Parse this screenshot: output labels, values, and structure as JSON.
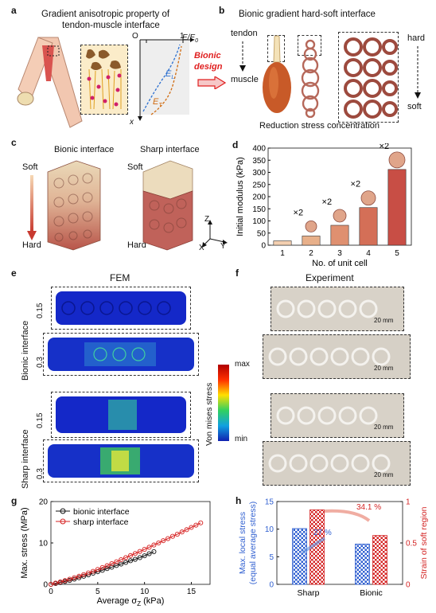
{
  "panels": {
    "a": {
      "letter": "a",
      "title_line1": "Gradient anisotropic property of",
      "title_line2": "tendon-muscle interface",
      "axis_origin": "O",
      "axis_one": "1",
      "axis_e": "E/E",
      "axis_e_sub": "0",
      "axis_x": "x",
      "el": "E",
      "el_sub": "L",
      "et": "E",
      "et_sub": "T"
    },
    "arrow": {
      "line1": "Bionic",
      "line2": "design"
    },
    "b": {
      "letter": "b",
      "title": "Bionic gradient hard-soft interface",
      "tendon": "tendon",
      "muscle": "muscle",
      "hard": "hard",
      "soft": "soft",
      "caption": "Reduction stress concentration"
    },
    "c": {
      "letter": "c",
      "bionic": "Bionic interface",
      "sharp": "Sharp interface",
      "soft1": "Soft",
      "hard1": "Hard",
      "soft2": "Soft",
      "hard2": "Hard",
      "axis_z": "Z",
      "axis_x": "X",
      "axis_y": "Y"
    },
    "d": {
      "letter": "d",
      "ylabel": "Initial modulus (kPa)",
      "xlabel": "No. of unit cell",
      "multiplier": "×2"
    },
    "e": {
      "letter": "e",
      "title": "FEM",
      "group1": "Bionic interface",
      "group2": "Sharp interface",
      "strain1": "0.15",
      "strain2": "0.3",
      "strain3": "0.15",
      "strain4": "0.3",
      "cbar_title": "Von mises stress",
      "cbar_max": "max",
      "cbar_min": "min"
    },
    "f": {
      "letter": "f",
      "title": "Experiment",
      "scale": "20 mm"
    },
    "g": {
      "letter": "g",
      "ylabel": "Max. stress (MPa)",
      "xlabel_pre": "Average σ",
      "xlabel_sub": "Z",
      "xlabel_post": " (kPa)",
      "legend_bionic": "bionic interface",
      "legend_sharp": "sharp interface"
    },
    "h": {
      "letter": "h",
      "ylabel_left1": "Max. local stress",
      "ylabel_left2": "(equal average stress)",
      "ylabel_right": "Strain of soft region",
      "pct_blue": "27 %",
      "pct_red": "34.1 %",
      "cat1": "Sharp",
      "cat2": "Bionic"
    }
  },
  "chart_data": [
    {
      "type": "bar",
      "id": "d",
      "categories": [
        "1",
        "2",
        "3",
        "4",
        "5"
      ],
      "values": [
        18,
        38,
        82,
        155,
        312
      ],
      "ylim": [
        0,
        400
      ],
      "yticks": [
        0,
        50,
        100,
        150,
        200,
        250,
        300,
        350,
        400
      ],
      "xlabel": "No. of unit cell",
      "ylabel": "Initial modulus (kPa)",
      "colors": [
        "#f3cfb0",
        "#e8b08a",
        "#df9070",
        "#d46f57",
        "#c84e45"
      ],
      "grid": false
    },
    {
      "type": "line",
      "id": "g",
      "xlim": [
        0,
        17
      ],
      "ylim": [
        0,
        20
      ],
      "xticks": [
        0,
        5,
        10,
        15
      ],
      "yticks": [
        0,
        10,
        20
      ],
      "xlabel": "Average σZ (kPa)",
      "ylabel": "Max. stress (MPa)",
      "legend": "top-left",
      "series": [
        {
          "name": "bionic interface",
          "color": "#111111",
          "x": [
            0,
            0.5,
            1,
            1.5,
            2,
            2.5,
            3,
            3.5,
            4,
            4.5,
            5,
            5.5,
            6,
            6.5,
            7,
            7.5,
            8,
            8.5,
            9,
            9.5,
            10,
            10.5,
            11
          ],
          "y": [
            0,
            0.2,
            0.45,
            0.7,
            0.95,
            1.25,
            1.6,
            1.95,
            2.3,
            2.7,
            3.05,
            3.4,
            3.8,
            4.15,
            4.55,
            4.9,
            5.3,
            5.7,
            6.05,
            6.45,
            6.9,
            7.4,
            7.9
          ]
        },
        {
          "name": "sharp interface",
          "color": "#d62020",
          "x": [
            0,
            0.5,
            1,
            1.5,
            2,
            2.5,
            3,
            3.5,
            4,
            4.5,
            5,
            5.5,
            6,
            6.5,
            7,
            7.5,
            8,
            8.5,
            9,
            9.5,
            10,
            10.5,
            11,
            11.5,
            12,
            12.5,
            13,
            13.5,
            14,
            14.5,
            15,
            15.5,
            16
          ],
          "y": [
            0,
            0.3,
            0.6,
            0.9,
            1.25,
            1.6,
            1.95,
            2.35,
            2.75,
            3.15,
            3.6,
            4.05,
            4.5,
            5.0,
            5.45,
            5.95,
            6.45,
            6.95,
            7.45,
            7.95,
            8.45,
            8.95,
            9.5,
            10.0,
            10.55,
            11.05,
            11.6,
            12.1,
            12.65,
            13.2,
            13.75,
            14.3,
            14.85
          ]
        }
      ]
    },
    {
      "type": "bar",
      "id": "h",
      "categories": [
        "Sharp",
        "Bionic"
      ],
      "series": [
        {
          "axis": "left",
          "color": "#2f5fd0",
          "values": [
            10.1,
            7.3
          ]
        },
        {
          "axis": "right",
          "color": "#d42525",
          "values": [
            0.9,
            0.59
          ]
        }
      ],
      "ylim_left": [
        0,
        15
      ],
      "yticks_left": [
        0,
        5,
        10,
        15
      ],
      "ylim_right": [
        0,
        1
      ],
      "yticks_right": [
        0,
        0.5,
        1
      ],
      "ylabel_left": "Max. local stress (equal average stress)",
      "ylabel_right": "Strain of soft region",
      "annotations": [
        "27 %",
        "34.1 %"
      ]
    }
  ]
}
